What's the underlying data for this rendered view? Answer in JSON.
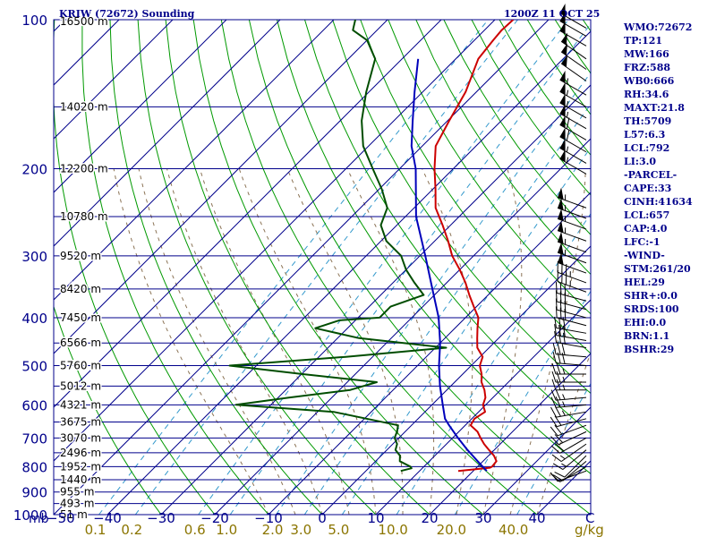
{
  "header": {
    "station": "KRIW (72672) Sounding",
    "time": "1200Z 11 OCT 25"
  },
  "stats": [
    "WMO:72672",
    "TP:121",
    "MW:166",
    "FRZ:588",
    "WB0:666",
    "RH:34.6",
    "MAXT:21.8",
    "TH:5709",
    "L57:6.3",
    "LCL:792",
    "LI:3.0",
    "-PARCEL-",
    "CAPE:33",
    "CINH:41634",
    "LCL:657",
    "CAP:4.0",
    "LFC:-1",
    "-WIND-",
    "STM:261/20",
    "HEL:29",
    "SHR+:0.0",
    "SRDS:100",
    "EHI:0.0",
    "BRN:1.1",
    "BSHR:29"
  ],
  "colors": {
    "isobar": "#00008b",
    "isotherm": "#00008b",
    "dry_adiabat": "#009900",
    "moist_adiabat": "#8b7355",
    "mixing_ratio": "#3399cc",
    "temperature": "#cc0000",
    "dewpoint": "#004d00",
    "parcel": "#0000bb",
    "axis_text": "#00008b",
    "mixing_text": "#8b7500"
  },
  "chart_data": {
    "type": "skew-t",
    "pressure_unit": "mb",
    "pressure_range": [
      1000,
      100
    ],
    "temperature_range": [
      -50,
      50
    ],
    "pressure_levels": [
      {
        "p": 100,
        "label": "100",
        "height": "16500 m"
      },
      {
        "p": 150,
        "label": "",
        "height": "14020 m"
      },
      {
        "p": 200,
        "label": "200",
        "height": "12200 m"
      },
      {
        "p": 250,
        "label": "",
        "height": "10780 m"
      },
      {
        "p": 300,
        "label": "300",
        "height": "9520 m"
      },
      {
        "p": 350,
        "label": "",
        "height": "8420 m"
      },
      {
        "p": 400,
        "label": "400",
        "height": "7450 m"
      },
      {
        "p": 450,
        "label": "",
        "height": "6566 m"
      },
      {
        "p": 500,
        "label": "500",
        "height": "5760 m"
      },
      {
        "p": 550,
        "label": "",
        "height": "5012 m"
      },
      {
        "p": 600,
        "label": "600",
        "height": "4321 m"
      },
      {
        "p": 650,
        "label": "",
        "height": "3675 m"
      },
      {
        "p": 700,
        "label": "700",
        "height": "3070 m"
      },
      {
        "p": 750,
        "label": "",
        "height": "2496 m"
      },
      {
        "p": 800,
        "label": "800",
        "height": "1952 m"
      },
      {
        "p": 850,
        "label": "",
        "height": "1440 m"
      },
      {
        "p": 900,
        "label": "900",
        "height": "955 m"
      },
      {
        "p": 950,
        "label": "",
        "height": "493 m"
      },
      {
        "p": 1000,
        "label": "1000",
        "height": "51 m"
      }
    ],
    "temperature_ticks": [
      {
        "t": -40,
        "label": "−40"
      },
      {
        "t": -30,
        "label": "−30"
      },
      {
        "t": -20,
        "label": "−20"
      },
      {
        "t": -10,
        "label": "−10"
      },
      {
        "t": 0,
        "label": "0"
      },
      {
        "t": 10,
        "label": "10"
      },
      {
        "t": 20,
        "label": "20"
      },
      {
        "t": 30,
        "label": "30"
      },
      {
        "t": 40,
        "label": "40"
      }
    ],
    "corner_labels": {
      "pressure_unit": "mb",
      "left_temp": "−50",
      "right_unit": "C"
    },
    "mixing_ratio_ticks": [
      {
        "w": 0.1,
        "label": "0.1"
      },
      {
        "w": 0.2,
        "label": "0.2"
      },
      {
        "w": 0.6,
        "label": "0.6"
      },
      {
        "w": 1.0,
        "label": "1.0"
      },
      {
        "w": 2.0,
        "label": "2.0"
      },
      {
        "w": 3.0,
        "label": "3.0"
      },
      {
        "w": 5.0,
        "label": "5.0"
      },
      {
        "w": 10.0,
        "label": "10.0"
      },
      {
        "w": 20.0,
        "label": "20.0"
      },
      {
        "w": 40.0,
        "label": "40.0"
      }
    ],
    "mixing_ratio_unit": "g/kg",
    "series": [
      {
        "kind": "temperature",
        "points": [
          [
            816,
            17.2
          ],
          [
            804,
            22.5
          ],
          [
            800,
            22.7
          ],
          [
            780,
            22.5
          ],
          [
            760,
            21.0
          ],
          [
            740,
            19.0
          ],
          [
            720,
            17.0
          ],
          [
            700,
            15.2
          ],
          [
            680,
            13.5
          ],
          [
            660,
            11.0
          ],
          [
            640,
            10.5
          ],
          [
            620,
            11.2
          ],
          [
            600,
            9.5
          ],
          [
            580,
            8.6
          ],
          [
            560,
            7.0
          ],
          [
            540,
            5.0
          ],
          [
            520,
            3.5
          ],
          [
            500,
            1.6
          ],
          [
            480,
            0.5
          ],
          [
            460,
            -2.2
          ],
          [
            440,
            -4.0
          ],
          [
            420,
            -5.8
          ],
          [
            400,
            -7.6
          ],
          [
            380,
            -10.5
          ],
          [
            360,
            -13.5
          ],
          [
            340,
            -16.5
          ],
          [
            320,
            -20.0
          ],
          [
            300,
            -24.0
          ],
          [
            280,
            -27.5
          ],
          [
            260,
            -31.5
          ],
          [
            240,
            -36.0
          ],
          [
            220,
            -39.5
          ],
          [
            200,
            -43.5
          ],
          [
            180,
            -47.5
          ],
          [
            160,
            -49.7
          ],
          [
            140,
            -52.0
          ],
          [
            120,
            -55.8
          ],
          [
            110,
            -56.5
          ],
          [
            105,
            -56.8
          ],
          [
            100,
            -56.6
          ]
        ]
      },
      {
        "kind": "dewpoint",
        "points": [
          [
            816,
            6.5
          ],
          [
            806,
            8.0
          ],
          [
            800,
            7.5
          ],
          [
            780,
            4.5
          ],
          [
            760,
            3.5
          ],
          [
            740,
            1.6
          ],
          [
            720,
            0.8
          ],
          [
            700,
            -0.8
          ],
          [
            680,
            -1.5
          ],
          [
            660,
            -2.5
          ],
          [
            620,
            -17.0
          ],
          [
            600,
            -36.5
          ],
          [
            580,
            -28.0
          ],
          [
            560,
            -18.0
          ],
          [
            540,
            -14.5
          ],
          [
            520,
            -30.0
          ],
          [
            500,
            -45.0
          ],
          [
            480,
            -25.0
          ],
          [
            460,
            -8.0
          ],
          [
            440,
            -26.0
          ],
          [
            420,
            -36.0
          ],
          [
            405,
            -33.0
          ],
          [
            400,
            -26.0
          ],
          [
            380,
            -26.0
          ],
          [
            360,
            -22.0
          ],
          [
            340,
            -26.0
          ],
          [
            320,
            -30.0
          ],
          [
            300,
            -33.5
          ],
          [
            280,
            -39.0
          ],
          [
            260,
            -43.0
          ],
          [
            240,
            -45.0
          ],
          [
            220,
            -49.5
          ],
          [
            200,
            -55.0
          ],
          [
            180,
            -61.0
          ],
          [
            160,
            -66.0
          ],
          [
            140,
            -70.5
          ],
          [
            120,
            -75.0
          ],
          [
            110,
            -80.0
          ],
          [
            105,
            -84.5
          ],
          [
            100,
            -86.0
          ]
        ]
      },
      {
        "kind": "parcel",
        "points": [
          [
            816,
            22.5
          ],
          [
            780,
            19.0
          ],
          [
            740,
            15.0
          ],
          [
            700,
            11.0
          ],
          [
            660,
            7.0
          ],
          [
            640,
            5.0
          ],
          [
            600,
            2.0
          ],
          [
            550,
            -2.0
          ],
          [
            500,
            -6.0
          ],
          [
            450,
            -10.0
          ],
          [
            400,
            -15.0
          ],
          [
            350,
            -21.5
          ],
          [
            300,
            -29.0
          ],
          [
            250,
            -38.0
          ],
          [
            200,
            -47.0
          ],
          [
            180,
            -52.0
          ],
          [
            160,
            -56.5
          ],
          [
            140,
            -61.5
          ],
          [
            120,
            -67.0
          ]
        ]
      }
    ],
    "wind_barbs": [
      {
        "p": 104,
        "dir": 300,
        "kt": 50
      },
      {
        "p": 108,
        "dir": 300,
        "kt": 50
      },
      {
        "p": 113,
        "dir": 300,
        "kt": 50
      },
      {
        "p": 120,
        "dir": 305,
        "kt": 50
      },
      {
        "p": 126,
        "dir": 305,
        "kt": 50
      },
      {
        "p": 133,
        "dir": 305,
        "kt": 50
      },
      {
        "p": 142,
        "dir": 300,
        "kt": 55
      },
      {
        "p": 150,
        "dir": 300,
        "kt": 55
      },
      {
        "p": 158,
        "dir": 300,
        "kt": 55
      },
      {
        "p": 166,
        "dir": 300,
        "kt": 55
      },
      {
        "p": 175,
        "dir": 300,
        "kt": 60
      },
      {
        "p": 185,
        "dir": 300,
        "kt": 60
      },
      {
        "p": 195,
        "dir": 300,
        "kt": 55
      },
      {
        "p": 205,
        "dir": 300,
        "kt": 55
      },
      {
        "p": 240,
        "dir": 290,
        "kt": 55
      },
      {
        "p": 252,
        "dir": 290,
        "kt": 55
      },
      {
        "p": 265,
        "dir": 290,
        "kt": 55
      },
      {
        "p": 280,
        "dir": 290,
        "kt": 55
      },
      {
        "p": 295,
        "dir": 290,
        "kt": 55
      },
      {
        "p": 310,
        "dir": 290,
        "kt": 55
      },
      {
        "p": 325,
        "dir": 290,
        "kt": 50
      },
      {
        "p": 340,
        "dir": 290,
        "kt": 35
      },
      {
        "p": 355,
        "dir": 290,
        "kt": 35
      },
      {
        "p": 370,
        "dir": 285,
        "kt": 30
      },
      {
        "p": 385,
        "dir": 285,
        "kt": 30
      },
      {
        "p": 400,
        "dir": 285,
        "kt": 30
      },
      {
        "p": 415,
        "dir": 285,
        "kt": 30
      },
      {
        "p": 430,
        "dir": 280,
        "kt": 30
      },
      {
        "p": 445,
        "dir": 280,
        "kt": 30
      },
      {
        "p": 460,
        "dir": 280,
        "kt": 30
      },
      {
        "p": 480,
        "dir": 275,
        "kt": 30
      },
      {
        "p": 500,
        "dir": 275,
        "kt": 30
      },
      {
        "p": 520,
        "dir": 270,
        "kt": 25
      },
      {
        "p": 540,
        "dir": 270,
        "kt": 25
      },
      {
        "p": 560,
        "dir": 270,
        "kt": 25
      },
      {
        "p": 580,
        "dir": 265,
        "kt": 25
      },
      {
        "p": 600,
        "dir": 265,
        "kt": 25
      },
      {
        "p": 620,
        "dir": 260,
        "kt": 25
      },
      {
        "p": 640,
        "dir": 255,
        "kt": 20
      },
      {
        "p": 660,
        "dir": 250,
        "kt": 20
      },
      {
        "p": 680,
        "dir": 245,
        "kt": 20
      },
      {
        "p": 700,
        "dir": 240,
        "kt": 20
      },
      {
        "p": 720,
        "dir": 235,
        "kt": 15
      },
      {
        "p": 740,
        "dir": 230,
        "kt": 15
      },
      {
        "p": 760,
        "dir": 225,
        "kt": 10
      },
      {
        "p": 780,
        "dir": 230,
        "kt": 10
      },
      {
        "p": 800,
        "dir": 240,
        "kt": 10
      },
      {
        "p": 816,
        "dir": 250,
        "kt": 10
      }
    ]
  }
}
